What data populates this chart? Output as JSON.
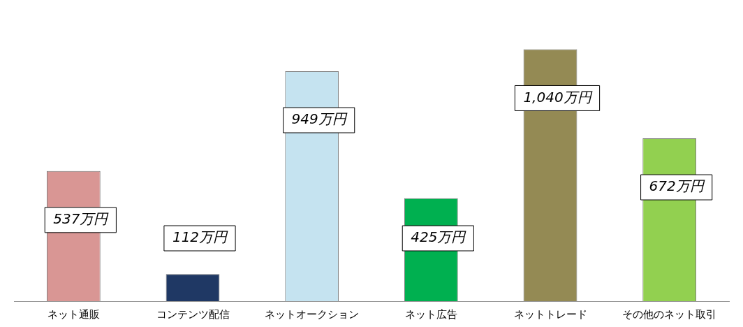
{
  "chart_data": {
    "type": "bar",
    "categories": [
      "ネット通販",
      "コンテンツ配信",
      "ネットオークション",
      "ネット広告",
      "ネットトレード",
      "その他のネット取引"
    ],
    "values": [
      537,
      112,
      949,
      425,
      1040,
      672
    ],
    "colors": [
      "#d99694",
      "#1f3864",
      "#c5e3f0",
      "#00b050",
      "#948a54",
      "#92d050"
    ],
    "value_labels": [
      "537万円",
      "112万円",
      "949万円",
      "425万円",
      "1,040万円",
      "672万円"
    ],
    "grid": false,
    "legend": false
  }
}
